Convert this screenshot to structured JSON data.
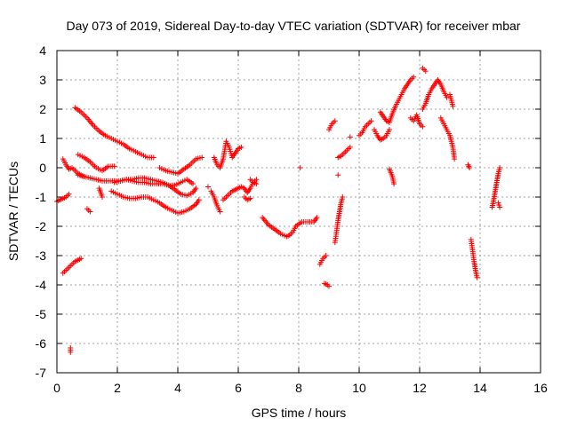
{
  "chart_data": {
    "type": "scatter",
    "title": "Day 073 of 2019, Sidereal Day-to-day VTEC variation (SDTVAR) for receiver mbar",
    "xlabel": "GPS time / hours",
    "ylabel": "SDTVAR / TECUs",
    "xlim": [
      0,
      16
    ],
    "ylim": [
      -7,
      4
    ],
    "xticks": [
      0,
      2,
      4,
      6,
      8,
      10,
      12,
      14,
      16
    ],
    "yticks": [
      -7,
      -6,
      -5,
      -4,
      -3,
      -2,
      -1,
      0,
      1,
      2,
      3,
      4
    ],
    "grid": true,
    "marker": "plus",
    "color": "#ff0000",
    "segments": [
      [
        [
          0.0,
          -1.15
        ],
        [
          0.1,
          -1.1
        ],
        [
          0.2,
          -1.05
        ],
        [
          0.3,
          -1.0
        ],
        [
          0.4,
          -0.9
        ]
      ],
      [
        [
          0.2,
          0.3
        ],
        [
          0.3,
          0.1
        ],
        [
          0.4,
          -0.05
        ],
        [
          0.5,
          0.0
        ],
        [
          0.6,
          -0.1
        ],
        [
          0.7,
          -0.2
        ],
        [
          0.8,
          -0.25
        ],
        [
          0.9,
          -0.3
        ]
      ],
      [
        [
          0.2,
          -3.6
        ],
        [
          0.3,
          -3.5
        ],
        [
          0.4,
          -3.4
        ],
        [
          0.5,
          -3.3
        ],
        [
          0.6,
          -3.2
        ],
        [
          0.7,
          -3.15
        ],
        [
          0.8,
          -3.1
        ]
      ],
      [
        [
          0.45,
          -6.15
        ],
        [
          0.45,
          -6.3
        ]
      ],
      [
        [
          0.6,
          2.05
        ],
        [
          0.8,
          1.9
        ],
        [
          1.0,
          1.7
        ],
        [
          1.2,
          1.45
        ],
        [
          1.4,
          1.25
        ],
        [
          1.6,
          1.1
        ],
        [
          1.8,
          1.0
        ],
        [
          2.0,
          0.9
        ],
        [
          2.2,
          0.8
        ],
        [
          2.4,
          0.65
        ],
        [
          2.6,
          0.55
        ],
        [
          2.8,
          0.45
        ],
        [
          3.0,
          0.35
        ],
        [
          3.2,
          0.35
        ]
      ],
      [
        [
          0.7,
          0.45
        ],
        [
          0.9,
          0.35
        ],
        [
          1.1,
          0.2
        ],
        [
          1.3,
          0.0
        ],
        [
          1.5,
          -0.1
        ],
        [
          1.7,
          0.05
        ],
        [
          1.9,
          0.05
        ]
      ],
      [
        [
          0.7,
          -0.25
        ],
        [
          0.9,
          -0.3
        ],
        [
          1.1,
          -0.35
        ],
        [
          1.3,
          -0.4
        ],
        [
          1.5,
          -0.45
        ],
        [
          1.7,
          -0.45
        ],
        [
          1.9,
          -0.45
        ],
        [
          2.1,
          -0.45
        ],
        [
          2.3,
          -0.4
        ],
        [
          2.5,
          -0.45
        ],
        [
          2.7,
          -0.5
        ],
        [
          2.9,
          -0.5
        ],
        [
          3.1,
          -0.55
        ],
        [
          3.3,
          -0.55
        ],
        [
          3.5,
          -0.55
        ],
        [
          3.7,
          -0.6
        ],
        [
          3.9,
          -0.6
        ],
        [
          4.1,
          -0.5
        ],
        [
          4.3,
          -0.4
        ],
        [
          4.5,
          -0.55
        ]
      ],
      [
        [
          1.0,
          -1.4
        ],
        [
          1.1,
          -1.5
        ]
      ],
      [
        [
          1.4,
          -0.7
        ],
        [
          1.5,
          -1.0
        ]
      ],
      [
        [
          1.8,
          -0.8
        ],
        [
          2.0,
          -0.9
        ],
        [
          2.2,
          -1.0
        ],
        [
          2.4,
          -1.05
        ],
        [
          2.6,
          -1.05
        ],
        [
          2.8,
          -1.0
        ],
        [
          3.0,
          -1.0
        ],
        [
          3.2,
          -1.1
        ],
        [
          3.4,
          -1.2
        ],
        [
          3.6,
          -1.35
        ],
        [
          3.8,
          -1.45
        ],
        [
          4.0,
          -1.55
        ],
        [
          4.2,
          -1.5
        ],
        [
          4.4,
          -1.4
        ],
        [
          4.6,
          -1.25
        ],
        [
          4.7,
          -1.1
        ]
      ],
      [
        [
          1.9,
          -0.5
        ],
        [
          2.1,
          -0.45
        ],
        [
          2.3,
          -0.4
        ],
        [
          2.5,
          -0.4
        ],
        [
          2.7,
          -0.35
        ],
        [
          2.9,
          -0.35
        ],
        [
          3.1,
          -0.4
        ],
        [
          3.3,
          -0.45
        ],
        [
          3.5,
          -0.5
        ],
        [
          3.7,
          -0.6
        ],
        [
          3.9,
          -0.75
        ],
        [
          4.1,
          -0.9
        ],
        [
          4.3,
          -0.95
        ],
        [
          4.5,
          -0.85
        ],
        [
          4.6,
          -0.7
        ]
      ],
      [
        [
          3.4,
          0.0
        ],
        [
          3.6,
          -0.1
        ],
        [
          3.8,
          -0.15
        ],
        [
          4.0,
          -0.2
        ],
        [
          4.2,
          -0.05
        ],
        [
          4.4,
          0.1
        ],
        [
          4.6,
          0.3
        ],
        [
          4.8,
          0.35
        ]
      ],
      [
        [
          5.0,
          -0.65
        ]
      ],
      [
        [
          5.1,
          -0.8
        ],
        [
          5.2,
          -1.0
        ],
        [
          5.3,
          -1.3
        ],
        [
          5.4,
          -1.5
        ]
      ],
      [
        [
          5.2,
          0.35
        ],
        [
          5.3,
          0.1
        ],
        [
          5.4,
          0.0
        ],
        [
          5.5,
          0.3
        ],
        [
          5.6,
          0.9
        ],
        [
          5.7,
          0.7
        ],
        [
          5.8,
          0.35
        ],
        [
          5.9,
          0.5
        ],
        [
          6.0,
          0.65
        ],
        [
          6.1,
          0.7
        ]
      ],
      [
        [
          5.5,
          -1.1
        ],
        [
          5.6,
          -1.0
        ],
        [
          5.7,
          -0.9
        ],
        [
          5.8,
          -0.8
        ],
        [
          5.9,
          -0.75
        ],
        [
          6.0,
          -0.7
        ],
        [
          6.1,
          -0.65
        ],
        [
          6.2,
          -0.7
        ],
        [
          6.3,
          -0.85
        ],
        [
          6.4,
          -0.7
        ],
        [
          6.5,
          -0.5
        ],
        [
          6.6,
          -0.4
        ]
      ],
      [
        [
          6.2,
          -1.0
        ],
        [
          6.3,
          -1.1
        ],
        [
          6.4,
          -1.05
        ]
      ],
      [
        [
          6.4,
          -0.4
        ],
        [
          6.5,
          -0.5
        ],
        [
          6.6,
          -0.55
        ]
      ],
      [
        [
          6.8,
          -1.7
        ],
        [
          7.0,
          -1.95
        ],
        [
          7.2,
          -2.1
        ],
        [
          7.4,
          -2.25
        ],
        [
          7.6,
          -2.35
        ],
        [
          7.7,
          -2.3
        ],
        [
          7.8,
          -2.2
        ],
        [
          7.9,
          -2.0
        ],
        [
          8.1,
          -1.85
        ],
        [
          8.3,
          -1.85
        ],
        [
          8.5,
          -1.85
        ],
        [
          8.6,
          -1.7
        ]
      ],
      [
        [
          8.05,
          0.0
        ]
      ],
      [
        [
          8.7,
          -3.3
        ],
        [
          8.8,
          -3.1
        ],
        [
          8.9,
          -3.0
        ]
      ],
      [
        [
          8.85,
          -3.95
        ],
        [
          8.95,
          -4.0
        ],
        [
          9.0,
          -4.05
        ]
      ],
      [
        [
          9.0,
          1.3
        ],
        [
          9.1,
          1.5
        ],
        [
          9.2,
          1.6
        ]
      ],
      [
        [
          9.2,
          -2.55
        ],
        [
          9.25,
          -2.2
        ],
        [
          9.3,
          -1.8
        ],
        [
          9.35,
          -1.5
        ],
        [
          9.4,
          -1.2
        ],
        [
          9.45,
          -1.0
        ]
      ],
      [
        [
          9.3,
          -0.25
        ]
      ],
      [
        [
          9.3,
          0.35
        ],
        [
          9.4,
          0.4
        ],
        [
          9.5,
          0.5
        ],
        [
          9.6,
          0.6
        ],
        [
          9.7,
          0.7
        ]
      ],
      [
        [
          9.7,
          1.05
        ]
      ],
      [
        [
          10.0,
          1.1
        ],
        [
          10.1,
          1.2
        ],
        [
          10.2,
          1.4
        ],
        [
          10.3,
          1.5
        ],
        [
          10.4,
          1.6
        ]
      ],
      [
        [
          10.5,
          1.3
        ],
        [
          10.6,
          1.1
        ],
        [
          10.7,
          0.95
        ],
        [
          10.8,
          1.0
        ],
        [
          10.9,
          1.1
        ],
        [
          11.0,
          1.3
        ]
      ],
      [
        [
          10.7,
          1.9
        ],
        [
          10.8,
          1.75
        ],
        [
          10.9,
          1.6
        ],
        [
          11.0,
          1.55
        ],
        [
          11.1,
          1.85
        ],
        [
          11.2,
          2.1
        ],
        [
          11.3,
          2.3
        ],
        [
          11.4,
          2.5
        ],
        [
          11.5,
          2.7
        ],
        [
          11.6,
          2.85
        ],
        [
          11.7,
          3.0
        ],
        [
          11.8,
          3.1
        ]
      ],
      [
        [
          11.0,
          -0.05
        ],
        [
          11.1,
          -0.3
        ],
        [
          11.15,
          -0.55
        ]
      ],
      [
        [
          11.7,
          1.7
        ],
        [
          11.8,
          1.6
        ],
        [
          11.9,
          1.8
        ],
        [
          12.0,
          1.5
        ],
        [
          12.1,
          1.4
        ]
      ],
      [
        [
          12.1,
          3.4
        ],
        [
          12.2,
          3.3
        ]
      ],
      [
        [
          12.1,
          2.0
        ],
        [
          12.2,
          2.2
        ],
        [
          12.3,
          2.5
        ],
        [
          12.4,
          2.7
        ],
        [
          12.5,
          2.85
        ],
        [
          12.6,
          3.0
        ],
        [
          12.7,
          2.85
        ],
        [
          12.8,
          2.6
        ],
        [
          12.9,
          2.4
        ]
      ],
      [
        [
          12.7,
          1.7
        ],
        [
          12.8,
          1.5
        ],
        [
          12.9,
          1.3
        ],
        [
          13.0,
          1.1
        ],
        [
          13.1,
          0.7
        ],
        [
          13.15,
          0.3
        ]
      ],
      [
        [
          13.0,
          2.5
        ],
        [
          13.1,
          2.1
        ]
      ],
      [
        [
          13.6,
          0.1
        ],
        [
          13.65,
          0.0
        ]
      ],
      [
        [
          13.7,
          -2.45
        ],
        [
          13.75,
          -2.8
        ],
        [
          13.8,
          -3.2
        ],
        [
          13.85,
          -3.5
        ],
        [
          13.9,
          -3.75
        ]
      ],
      [
        [
          14.4,
          -1.35
        ],
        [
          14.45,
          -1.1
        ],
        [
          14.5,
          -0.8
        ],
        [
          14.55,
          -0.5
        ],
        [
          14.6,
          -0.2
        ],
        [
          14.65,
          0.0
        ]
      ],
      [
        [
          14.6,
          -1.2
        ],
        [
          14.65,
          -1.35
        ]
      ]
    ]
  }
}
